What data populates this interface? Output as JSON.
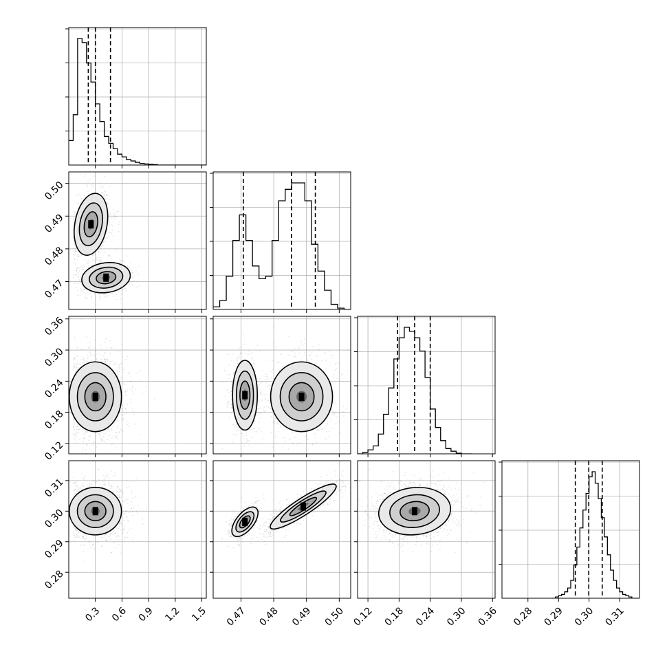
{
  "chart_data": {
    "type": "corner",
    "title": "",
    "parameters": [
      {
        "label": "",
        "range": [
          0.0,
          1.55
        ],
        "ticks": [
          0.3,
          0.6,
          0.9,
          1.2,
          1.5
        ],
        "tick_labels": [
          "0.3",
          "0.6",
          "0.9",
          "1.2",
          "1.5"
        ],
        "quantiles": [
          0.22,
          0.3,
          0.47
        ]
      },
      {
        "label": "",
        "range": [
          0.4615,
          0.5035
        ],
        "ticks": [
          0.47,
          0.48,
          0.49,
          0.5
        ],
        "tick_labels": [
          "0.47",
          "0.48",
          "0.49",
          "0.50"
        ],
        "quantiles": [
          0.4707,
          0.4854,
          0.4927
        ]
      },
      {
        "label": "",
        "range": [
          0.1,
          0.365
        ],
        "ticks": [
          0.12,
          0.18,
          0.24,
          0.3,
          0.36
        ],
        "tick_labels": [
          "0.12",
          "0.18",
          "0.24",
          "0.30",
          "0.36"
        ],
        "quantiles": [
          0.177,
          0.21,
          0.24
        ]
      },
      {
        "label": "",
        "range": [
          0.2715,
          0.3165
        ],
        "ticks": [
          0.28,
          0.29,
          0.3,
          0.31
        ],
        "tick_labels": [
          "0.28",
          "0.29",
          "0.30",
          "0.31"
        ],
        "quantiles": [
          0.2955,
          0.2999,
          0.3043
        ]
      }
    ],
    "histograms": [
      {
        "param": 0,
        "bin_edges": [
          0.0,
          0.05,
          0.1,
          0.15,
          0.2,
          0.25,
          0.3,
          0.35,
          0.4,
          0.45,
          0.5,
          0.55,
          0.6,
          0.65,
          0.7,
          0.75,
          0.8,
          0.85,
          0.9,
          0.95,
          1.0,
          1.05,
          1.1,
          1.15,
          1.2,
          1.25,
          1.3,
          1.35,
          1.4,
          1.45,
          1.5,
          1.55
        ],
        "counts": [
          0.18,
          0.37,
          0.93,
          0.9,
          0.75,
          0.61,
          0.45,
          0.32,
          0.21,
          0.16,
          0.12,
          0.08,
          0.06,
          0.04,
          0.03,
          0.02,
          0.012,
          0.008,
          0.005,
          0.003,
          0,
          0,
          0,
          0,
          0,
          0,
          0,
          0,
          0,
          0,
          0
        ]
      },
      {
        "param": 1,
        "bin_edges": [
          0.4615,
          0.4635,
          0.4655,
          0.4675,
          0.4695,
          0.4715,
          0.4735,
          0.4755,
          0.4775,
          0.4795,
          0.4815,
          0.4835,
          0.4855,
          0.4875,
          0.4895,
          0.4915,
          0.4935,
          0.4955,
          0.4975,
          0.4995,
          0.5015,
          0.5035
        ],
        "counts": [
          0.02,
          0.07,
          0.26,
          0.54,
          0.74,
          0.54,
          0.34,
          0.24,
          0.26,
          0.54,
          0.85,
          0.94,
          0.99,
          0.99,
          0.85,
          0.51,
          0.3,
          0.15,
          0.04,
          0.01,
          0.0
        ]
      },
      {
        "param": 2,
        "bin_edges": [
          0.1,
          0.11,
          0.12,
          0.13,
          0.14,
          0.15,
          0.16,
          0.17,
          0.18,
          0.19,
          0.2,
          0.21,
          0.22,
          0.23,
          0.24,
          0.25,
          0.26,
          0.27,
          0.28,
          0.29,
          0.3,
          0.31,
          0.32
        ],
        "counts": [
          0.0,
          0.01,
          0.03,
          0.06,
          0.15,
          0.3,
          0.5,
          0.72,
          0.88,
          0.96,
          0.93,
          0.88,
          0.78,
          0.58,
          0.34,
          0.2,
          0.1,
          0.04,
          0.02,
          0.005,
          0.0,
          0.0
        ]
      },
      {
        "param": 3,
        "bin_edges": [
          0.288,
          0.289,
          0.29,
          0.291,
          0.292,
          0.293,
          0.294,
          0.295,
          0.296,
          0.297,
          0.298,
          0.299,
          0.3,
          0.301,
          0.302,
          0.303,
          0.304,
          0.305,
          0.306,
          0.307,
          0.308,
          0.309,
          0.31,
          0.311,
          0.312,
          0.313,
          0.314,
          0.315,
          0.316
        ],
        "counts": [
          0.0,
          0.01,
          0.02,
          0.03,
          0.05,
          0.08,
          0.14,
          0.26,
          0.4,
          0.55,
          0.69,
          0.82,
          0.95,
          0.99,
          0.9,
          0.78,
          0.63,
          0.48,
          0.34,
          0.22,
          0.14,
          0.08,
          0.05,
          0.03,
          0.02,
          0.01,
          0.0,
          0.0
        ]
      }
    ],
    "pairs": [
      {
        "x_param": 0,
        "y_param": 1,
        "modes": [
          {
            "cx": 0.25,
            "cy": 0.4875,
            "sx": 0.09,
            "sy": 0.0045,
            "rho": 0.25,
            "weight": 0.55
          },
          {
            "cx": 0.42,
            "cy": 0.4712,
            "sx": 0.13,
            "sy": 0.0022,
            "rho": 0.15,
            "weight": 0.45
          }
        ]
      },
      {
        "x_param": 0,
        "y_param": 2,
        "modes": [
          {
            "cx": 0.3,
            "cy": 0.21,
            "sx": 0.14,
            "sy": 0.032,
            "rho": 0.0,
            "weight": 1.0
          }
        ]
      },
      {
        "x_param": 1,
        "y_param": 2,
        "modes": [
          {
            "cx": 0.4712,
            "cy": 0.213,
            "sx": 0.0018,
            "sy": 0.032,
            "rho": 0.0,
            "weight": 0.4
          },
          {
            "cx": 0.4885,
            "cy": 0.21,
            "sx": 0.0045,
            "sy": 0.032,
            "rho": 0.0,
            "weight": 0.6
          }
        ]
      },
      {
        "x_param": 0,
        "y_param": 3,
        "modes": [
          {
            "cx": 0.3,
            "cy": 0.3,
            "sx": 0.14,
            "sy": 0.0037,
            "rho": 0.0,
            "weight": 1.0
          }
        ]
      },
      {
        "x_param": 1,
        "y_param": 3,
        "modes": [
          {
            "cx": 0.4712,
            "cy": 0.2965,
            "sx": 0.0019,
            "sy": 0.0023,
            "rho": 0.6,
            "weight": 0.35
          },
          {
            "cx": 0.489,
            "cy": 0.3015,
            "sx": 0.0048,
            "sy": 0.0035,
            "rho": 0.9,
            "weight": 0.65
          }
        ]
      },
      {
        "x_param": 2,
        "y_param": 3,
        "modes": [
          {
            "cx": 0.21,
            "cy": 0.3,
            "sx": 0.033,
            "sy": 0.0037,
            "rho": 0.1,
            "weight": 1.0
          }
        ]
      }
    ],
    "grid": true,
    "legend": "none"
  }
}
